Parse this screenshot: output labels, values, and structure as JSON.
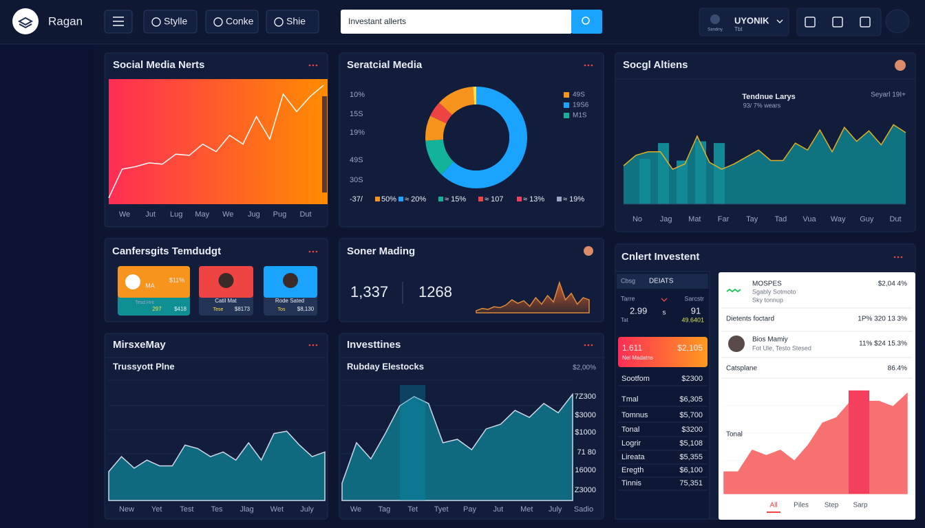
{
  "header": {
    "brand": "Ragan",
    "nav": [
      "Stylle",
      "Conke",
      "Shie"
    ],
    "search": "Investant allerts",
    "user_name": "UYONIK",
    "user_sub": "Tbt",
    "user_caption": "Sandiny"
  },
  "social_media_nerts": {
    "title": "Social Media Nerts",
    "x_labels": [
      "We",
      "Jut",
      "Lug",
      "May",
      "We",
      "Jug",
      "Pug",
      "Dut"
    ],
    "points": [
      5,
      28,
      30,
      33,
      32,
      40,
      39,
      48,
      42,
      55,
      48,
      70,
      52,
      88,
      74,
      86,
      95
    ],
    "ylim": [
      0,
      100
    ]
  },
  "seratcial_media": {
    "title": "Seratcial Media",
    "side_labels": [
      "10%",
      "15S",
      "19%",
      "49S",
      "30S"
    ],
    "bottom_labels": [
      "-37/",
      "50%",
      "≈ 20%",
      "≈ 15%",
      "≈ 107",
      "≈ 13%",
      "≈ 19%"
    ],
    "bottom_colors": [
      "#f7941d",
      "#1aa3ff",
      "#13b29a",
      "#ef4444",
      "#f43f5e"
    ],
    "legend": [
      {
        "label": "49S",
        "color": "#f7941d"
      },
      {
        "label": "19S6",
        "color": "#1aa3ff"
      },
      {
        "label": "M1S",
        "color": "#13b29a"
      }
    ],
    "segments": [
      {
        "value": 62,
        "color": "#1aa3ff"
      },
      {
        "value": 12,
        "color": "#13b29a"
      },
      {
        "value": 8,
        "color": "#f7941d"
      },
      {
        "value": 5,
        "color": "#ef4444"
      },
      {
        "value": 12,
        "color": "#f7941d"
      },
      {
        "value": 1,
        "color": "#fde047"
      }
    ]
  },
  "socgl_altiens": {
    "title": "Socgl Altiens",
    "chart_title": "Tendnue Larys",
    "chart_subtitle": "93/ 7% wears",
    "corner_label": "Seyarl 19I+",
    "x_labels": [
      "No",
      "Jag",
      "Mat",
      "Far",
      "Tay",
      "Tad",
      "Vua",
      "Way",
      "Guy",
      "Dut"
    ],
    "bars": [
      52,
      70,
      50,
      72,
      70
    ],
    "line": [
      44,
      56,
      60,
      60,
      40,
      46,
      78,
      48,
      40,
      46,
      54,
      62,
      50,
      50,
      70,
      62,
      85,
      60,
      88,
      72,
      84,
      68,
      91,
      82
    ],
    "ylim": [
      0,
      100
    ]
  },
  "canfersgits": {
    "title": "Canfersgits Temdudgt",
    "cards": [
      {
        "lines": [
          "MA",
          "$11%",
          "Tesd Hnt",
          "297",
          "$418"
        ]
      },
      {
        "lines": [
          "Catil Mat",
          "Tese",
          "$8173"
        ]
      },
      {
        "lines": [
          "Rode Sated",
          "Tos",
          "$8,130"
        ]
      }
    ]
  },
  "soner_mading": {
    "title": "Soner Mading",
    "stat_1": "1,337",
    "stat_2": "1268",
    "spark": [
      5,
      10,
      8,
      14,
      12,
      18,
      30,
      22,
      28,
      15,
      35,
      20,
      40,
      25,
      70,
      30,
      45,
      20,
      35,
      30
    ],
    "ylim": [
      0,
      100
    ]
  },
  "mirsxemay": {
    "title": "MirsxeMay",
    "subtitle": "Trussyott Plne",
    "x_labels": [
      "New",
      "Yet",
      "Test",
      "Tes",
      "Jlag",
      "Wet",
      "July"
    ],
    "points": [
      25,
      38,
      28,
      35,
      30,
      30,
      48,
      45,
      38,
      42,
      35,
      50,
      35,
      58,
      60,
      48,
      38,
      42
    ],
    "ylim": [
      0,
      100
    ]
  },
  "investtines": {
    "title": "Investtines",
    "subtitle": "Rubday Elestocks",
    "corner_label": "$2,00%",
    "y_labels": [
      "7Z300",
      "$3000",
      "$1000",
      "71 80",
      "16000",
      "Z3000"
    ],
    "x_labels": [
      "We",
      "Tag",
      "Tet",
      "Tyet",
      "Pay",
      "Jut",
      "Met",
      "July",
      "Sadio"
    ],
    "points": [
      15,
      50,
      36,
      58,
      82,
      90,
      84,
      50,
      53,
      44,
      62,
      66,
      78,
      72,
      84,
      76,
      92
    ],
    "ylim": [
      0,
      100
    ]
  },
  "cnlert": {
    "title": "Cnlert Investent",
    "tabs": [
      "Cbsg",
      "DEIATS"
    ],
    "summary": {
      "col_1": "Tarre",
      "col_2": "Sarcstr",
      "v1": "2.99",
      "v2": "s",
      "v3": "91",
      "v4": "Tat",
      "v5": "49.6401"
    },
    "alert": {
      "value": "1.611",
      "amount": "$2,105",
      "label": "Nel Madatns"
    },
    "rows": [
      [
        "Sootfom",
        "$2300"
      ],
      [
        "Tmal",
        "$6,305"
      ],
      [
        "Tomnus",
        "$5,700"
      ],
      [
        "Tonal",
        "$3200"
      ],
      [
        "Logrir",
        "$5,108"
      ],
      [
        "Lireata",
        "$5,355"
      ],
      [
        "Eregth",
        "$6,100"
      ],
      [
        "Tinnis",
        "75,351"
      ]
    ],
    "card": {
      "items": [
        {
          "name": "MOSPES",
          "line_1": "Sgably Sotmoto",
          "line_2": "Sky tonnup",
          "value": "$2,04 4%"
        },
        {
          "name": "Dietents foctard",
          "value": "1P% 320 13 3%"
        },
        {
          "name": "Bios Mamiy",
          "line_1": "Fot Ule, Testo Stesed",
          "value": "11% $24 15.3%"
        },
        {
          "name": "Catsplane",
          "value": "86.4%"
        }
      ],
      "chart_label": "Tonal",
      "tabs": [
        "All",
        "Piles",
        "Step",
        "Sarp"
      ],
      "points": [
        20,
        20,
        40,
        35,
        40,
        30,
        45,
        65,
        70,
        85,
        85,
        85,
        80,
        92
      ],
      "highlight": 95,
      "ylim": [
        0,
        100
      ]
    }
  }
}
